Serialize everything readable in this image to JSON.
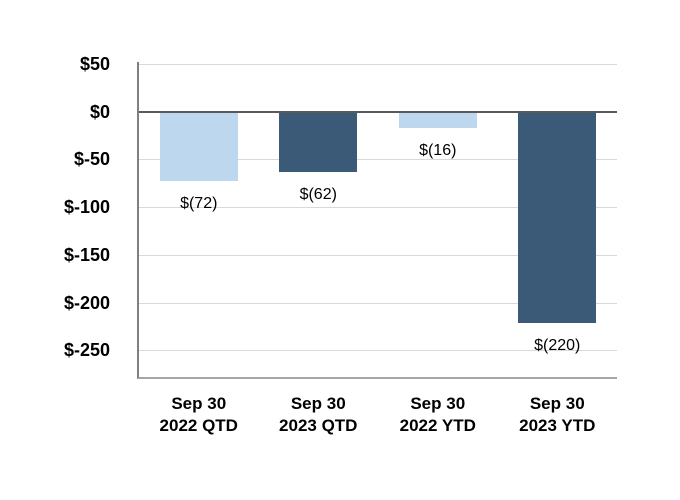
{
  "chart_data": {
    "type": "bar",
    "title": "",
    "categories": [
      {
        "line1": "Sep 30",
        "line2": "2022 QTD"
      },
      {
        "line1": "Sep 30",
        "line2": "2023 QTD"
      },
      {
        "line1": "Sep 30",
        "line2": "2022 YTD"
      },
      {
        "line1": "Sep 30",
        "line2": "2023 YTD"
      }
    ],
    "values": [
      -72,
      -62,
      -16,
      -220
    ],
    "data_labels": [
      "$(72)",
      "$(62)",
      "$(16)",
      "$(220)"
    ],
    "bar_colors": [
      "#BDD7EE",
      "#3A5A78",
      "#BDD7EE",
      "#3A5A78"
    ],
    "y_ticks": [
      {
        "value": 50,
        "label": "$50"
      },
      {
        "value": 0,
        "label": "$0"
      },
      {
        "value": -50,
        "label": "$-50"
      },
      {
        "value": -100,
        "label": "$-100"
      },
      {
        "value": -150,
        "label": "$-150"
      },
      {
        "value": -200,
        "label": "$-200"
      },
      {
        "value": -250,
        "label": "$-250"
      }
    ],
    "ylim": [
      -278,
      52
    ],
    "grid": true,
    "legend": false,
    "colors": {
      "light_series": "#BDD7EE",
      "dark_series": "#3A5A78",
      "gridline": "#D9D9D9",
      "zero_line": "#595959",
      "axis_line": "#808080",
      "bottom_line": "#A6A6A6",
      "label_text": "#000000",
      "background": "#FFFFFF"
    }
  }
}
